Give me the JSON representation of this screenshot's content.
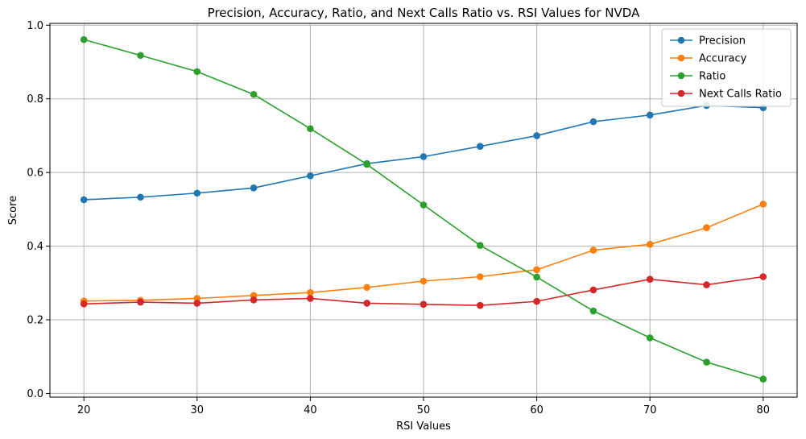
{
  "chart_data": {
    "type": "line",
    "title": "Precision, Accuracy, Ratio, and Next Calls Ratio vs. RSI Values for NVDA",
    "xlabel": "RSI Values",
    "ylabel": "Score",
    "x": [
      20,
      25,
      30,
      35,
      40,
      45,
      50,
      55,
      60,
      65,
      70,
      75,
      80
    ],
    "xlim": [
      17,
      83
    ],
    "ylim": [
      -0.01,
      1.005
    ],
    "xticks": [
      20,
      30,
      40,
      50,
      60,
      70,
      80
    ],
    "yticks": [
      0.0,
      0.2,
      0.4,
      0.6,
      0.8,
      1.0
    ],
    "xtick_labels": [
      "20",
      "30",
      "40",
      "50",
      "60",
      "70",
      "80"
    ],
    "ytick_labels": [
      "0.0",
      "0.2",
      "0.4",
      "0.6",
      "0.8",
      "1.0"
    ],
    "grid": true,
    "legend_position": "top-right",
    "series": [
      {
        "name": "Precision",
        "color": "#1f77b4",
        "values": [
          0.526,
          0.533,
          0.544,
          0.558,
          0.591,
          0.624,
          0.643,
          0.671,
          0.7,
          0.738,
          0.756,
          0.782,
          0.776
        ]
      },
      {
        "name": "Accuracy",
        "color": "#ff7f0e",
        "values": [
          0.251,
          0.253,
          0.258,
          0.266,
          0.274,
          0.288,
          0.305,
          0.317,
          0.336,
          0.389,
          0.405,
          0.45,
          0.514
        ]
      },
      {
        "name": "Ratio",
        "color": "#2ca02c",
        "values": [
          0.961,
          0.918,
          0.874,
          0.812,
          0.719,
          0.622,
          0.512,
          0.402,
          0.316,
          0.224,
          0.151,
          0.085,
          0.039
        ]
      },
      {
        "name": "Next Calls Ratio",
        "color": "#d62728",
        "values": [
          0.243,
          0.248,
          0.245,
          0.254,
          0.258,
          0.245,
          0.242,
          0.239,
          0.25,
          0.281,
          0.31,
          0.295,
          0.317
        ]
      }
    ]
  }
}
